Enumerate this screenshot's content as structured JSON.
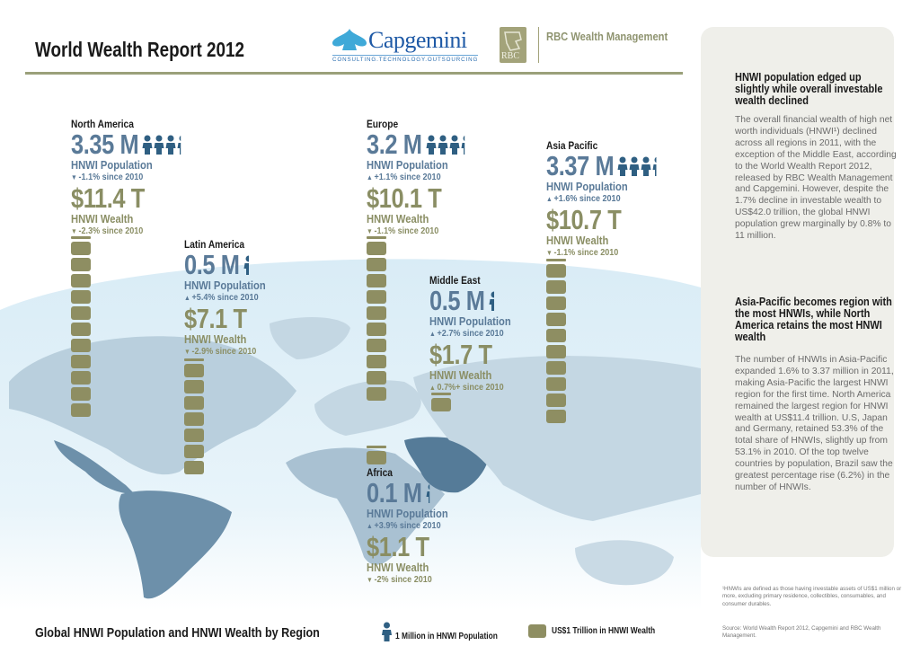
{
  "header": {
    "title": "World Wealth Report 2012",
    "capgemini_name": "Capgemini",
    "capgemini_tagline": "CONSULTING.TECHNOLOGY.OUTSOURCING",
    "rbc_badge": "RBC",
    "rbc_name": "RBC Wealth Management"
  },
  "colors": {
    "population": "#5a7a98",
    "wealth": "#8e8e62",
    "map_land": "#b9cfdd",
    "map_highlight": "#6d90aa",
    "panel_bg": "#efefea"
  },
  "icons": {
    "population_unit": "person-icon",
    "wealth_unit": "rounded-block-icon"
  },
  "chart_data": {
    "type": "pictogram",
    "title": "Global HNWI Population and HNWI Wealth by Region",
    "legend": [
      {
        "icon": "person-icon",
        "label": "1 Million in HNWI Population"
      },
      {
        "icon": "rounded-block-icon",
        "label": "US$1 Trillion in HNWI Wealth"
      }
    ],
    "legend_placement": "bottom",
    "population_label": "HNWI Population",
    "wealth_label": "HNWI Wealth",
    "regions": [
      {
        "name": "North America",
        "population_millions": 3.35,
        "population_text": "3.35 M",
        "population_change": "-1.1% since 2010",
        "population_direction": "down",
        "wealth_trillions": 11.4,
        "wealth_text": "$11.4 T",
        "wealth_change": "-2.3% since 2010",
        "wealth_direction": "down"
      },
      {
        "name": "Latin America",
        "population_millions": 0.5,
        "population_text": "0.5 M",
        "population_change": "+5.4% since 2010",
        "population_direction": "up",
        "wealth_trillions": 7.1,
        "wealth_text": "$7.1 T",
        "wealth_change": "-2.9% since 2010",
        "wealth_direction": "down"
      },
      {
        "name": "Europe",
        "population_millions": 3.2,
        "population_text": "3.2 M",
        "population_change": "+1.1% since 2010",
        "population_direction": "up",
        "wealth_trillions": 10.1,
        "wealth_text": "$10.1 T",
        "wealth_change": "-1.1% since 2010",
        "wealth_direction": "down"
      },
      {
        "name": "Middle East",
        "population_millions": 0.5,
        "population_text": "0.5 M",
        "population_change": "+2.7% since 2010",
        "population_direction": "up",
        "wealth_trillions": 1.7,
        "wealth_text": "$1.7 T",
        "wealth_change": "0.7%+ since 2010",
        "wealth_direction": "up"
      },
      {
        "name": "Asia Pacific",
        "population_millions": 3.37,
        "population_text": "3.37 M",
        "population_change": "+1.6% since 2010",
        "population_direction": "up",
        "wealth_trillions": 10.7,
        "wealth_text": "$10.7 T",
        "wealth_change": "-1.1% since 2010",
        "wealth_direction": "down"
      },
      {
        "name": "Africa",
        "population_millions": 0.1,
        "population_text": "0.1 M",
        "population_change": "+3.9% since 2010",
        "population_direction": "up",
        "wealth_trillions": 1.1,
        "wealth_text": "$1.1 T",
        "wealth_change": "-2% since 2010",
        "wealth_direction": "down"
      }
    ]
  },
  "panel": {
    "section1_heading": "HNWI population edged up slightly while overall investable wealth declined",
    "section1_body": "The overall financial wealth of high net worth individuals (HNWI¹) declined across all regions in 2011, with the exception of the Middle East, according to the World Wealth Report 2012, released by RBC Wealth Management and Capgemini. However, despite the 1.7% decline in investable wealth to US$42.0 trillion, the global HNWI population grew marginally by 0.8% to 11 million.",
    "section2_heading": "Asia-Pacific becomes region with the most HNWIs, while North America retains the most HNWI wealth",
    "section2_body": "The number of HNWIs in Asia-Pacific expanded 1.6% to 3.37 million in 2011, making Asia-Pacific the largest HNWI region for the first time. North America remained the largest region for HNWI wealth at US$11.4 trillion. U.S, Japan and Germany, retained 53.3% of the total share of HNWIs, slightly up from 53.1% in 2010. Of the top twelve countries by population, Brazil saw the greatest percentage rise (6.2%) in the number of HNWIs.",
    "footnote": "¹HNWIs are defined as those having investable assets of US$1 million or more, excluding primary residence, collectibles, consumables, and consumer durables.",
    "source": "Source: World Wealth Report 2012, Capgemini and RBC Wealth Management."
  }
}
